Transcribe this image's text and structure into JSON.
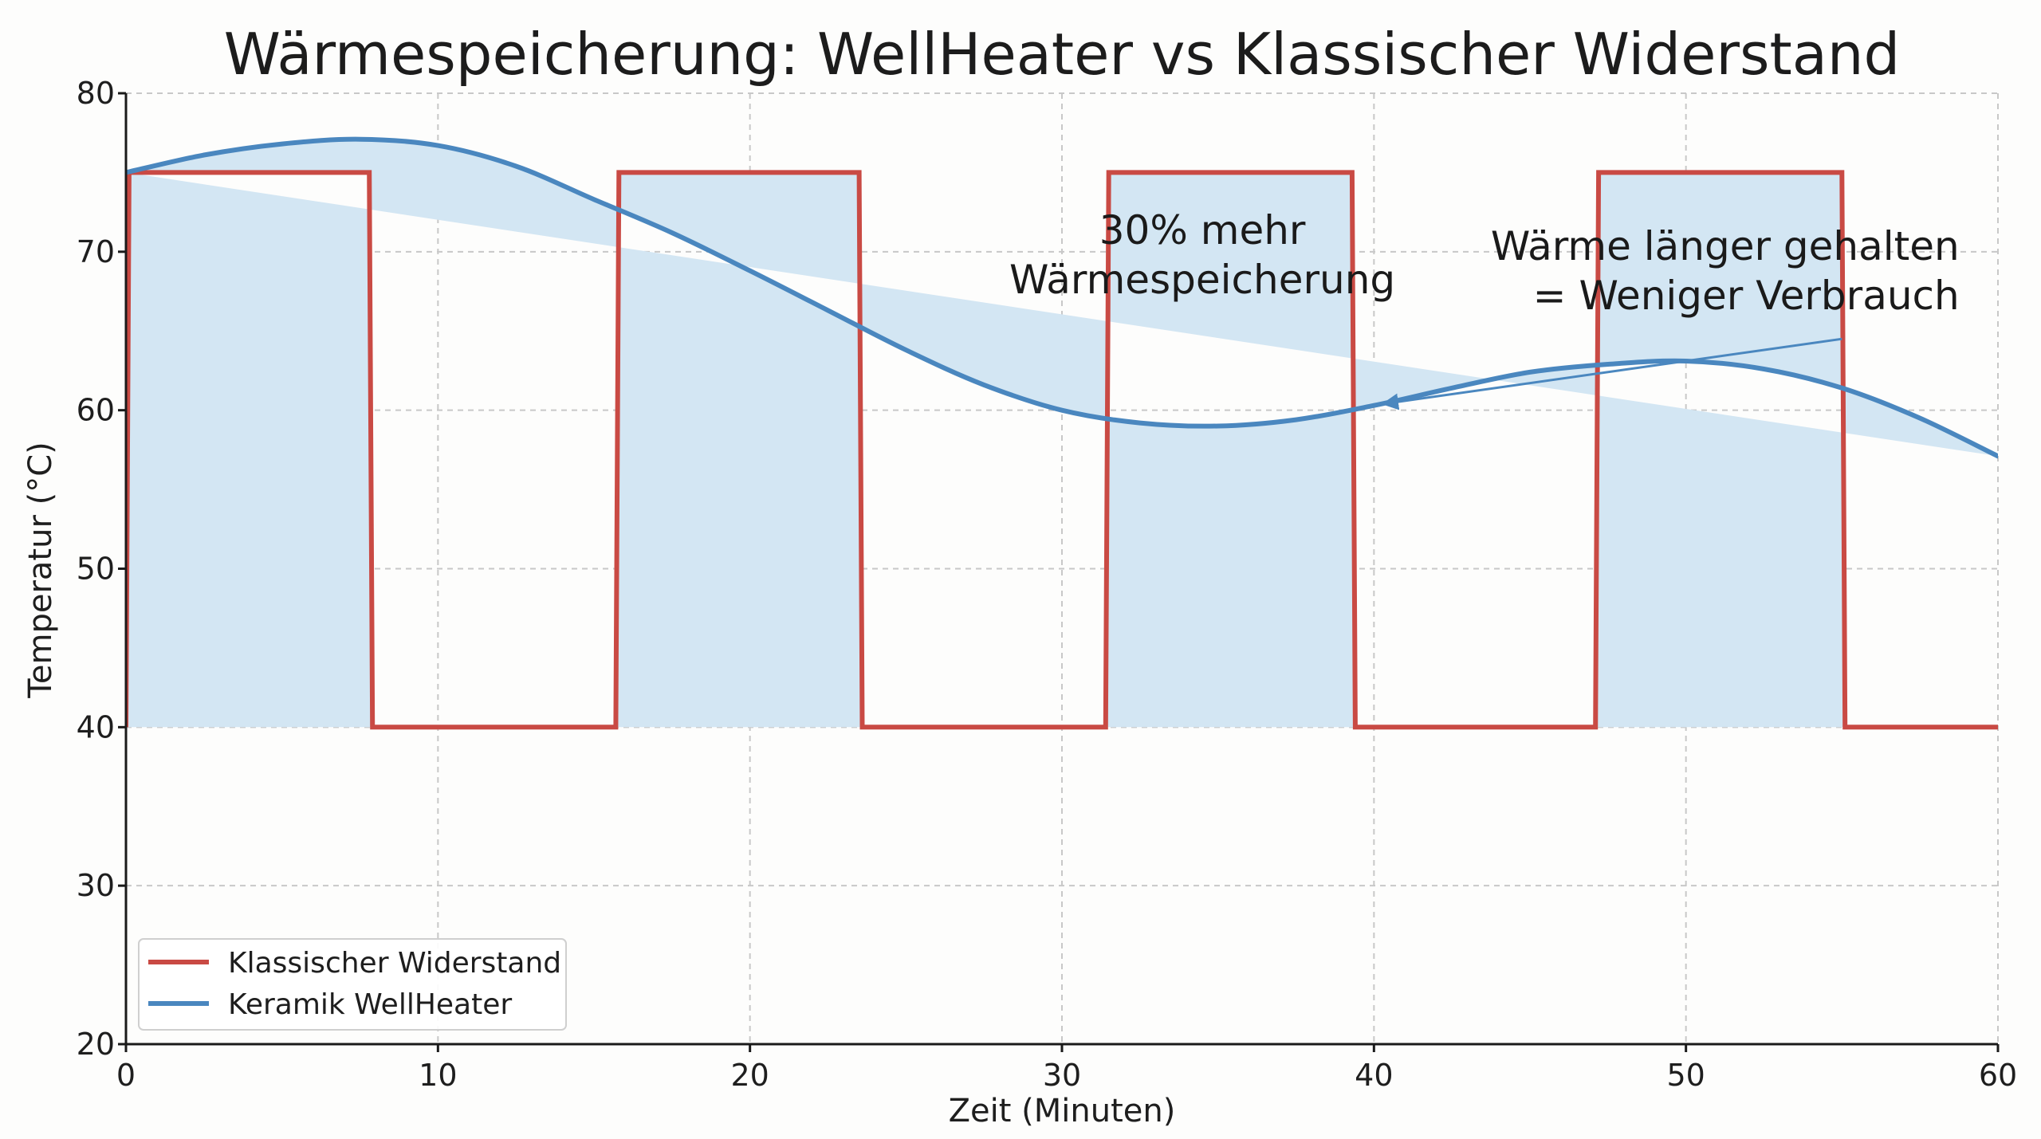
{
  "chart_data": {
    "type": "line",
    "title": "Wärmespeicherung: WellHeater vs Klassischer Widerstand",
    "xlabel": "Zeit (Minuten)",
    "ylabel": "Temperatur (°C)",
    "xlim": [
      0,
      60
    ],
    "ylim": [
      20,
      80
    ],
    "xticks": [
      0,
      10,
      20,
      30,
      40,
      50,
      60
    ],
    "yticks": [
      20,
      30,
      40,
      50,
      60,
      70,
      80
    ],
    "grid": true,
    "legend_position": "bottom-left",
    "fill_between": true,
    "colors": {
      "widerstand": "#c94a44",
      "wellheater": "#4a87bf",
      "fill": "#d3e6f3",
      "grid": "#c8c8c8"
    },
    "series": [
      {
        "name": "Klassischer Widerstand",
        "style": "step",
        "x": [
          0,
          0.1,
          7.8,
          7.9,
          15.7,
          15.8,
          23.5,
          23.6,
          31.4,
          31.5,
          39.3,
          39.4,
          47.1,
          47.2,
          55,
          55.1,
          60
        ],
        "y": [
          40,
          75,
          75,
          40,
          40,
          75,
          75,
          40,
          40,
          75,
          75,
          40,
          40,
          75,
          75,
          40,
          40
        ]
      },
      {
        "name": "Keramik WellHeater",
        "style": "smooth",
        "x": [
          0,
          2.5,
          5,
          7.5,
          10,
          12.5,
          15,
          17.5,
          20,
          22.5,
          25,
          27.5,
          30,
          32.5,
          35,
          37.5,
          40,
          42.5,
          45,
          47.5,
          50,
          52.5,
          55,
          57.5,
          60
        ],
        "y": [
          75,
          76.1,
          76.8,
          77.1,
          76.7,
          75.4,
          73.3,
          71.2,
          68.8,
          66.3,
          63.8,
          61.6,
          60.0,
          59.2,
          59.0,
          59.4,
          60.3,
          61.4,
          62.4,
          62.9,
          63.1,
          62.6,
          61.4,
          59.5,
          57.1
        ]
      }
    ],
    "annotations": [
      {
        "lines": [
          "30% mehr",
          "Wärmespeicherung"
        ],
        "x": 34.5,
        "y": 70.5
      },
      {
        "lines": [
          "Wärme länger gehalten",
          "= Weniger Verbrauch"
        ],
        "x": 58,
        "y": 69.5,
        "arrow_from": [
          55,
          64.5
        ],
        "arrow_to": [
          40.3,
          60.4
        ]
      }
    ]
  }
}
